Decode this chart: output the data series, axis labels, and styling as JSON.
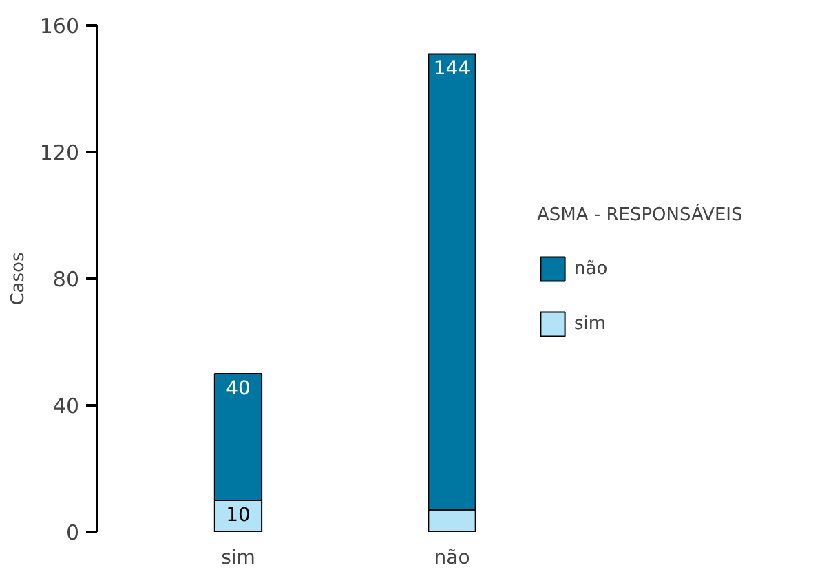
{
  "chart_data": {
    "type": "bar",
    "stacked": true,
    "ylabel": "Casos",
    "legend_title": "ASMA - RESPONSÁVEIS",
    "legend": "right",
    "grid": false,
    "categories": [
      "sim",
      "não"
    ],
    "ylim": [
      0,
      160
    ],
    "yticks": [
      0,
      40,
      80,
      120,
      160
    ],
    "series": [
      {
        "name": "sim",
        "color": "#b3e3f7",
        "values": [
          10,
          7
        ],
        "value_labels": [
          "10",
          null
        ]
      },
      {
        "name": "não",
        "color": "#0076a3",
        "values": [
          40,
          144
        ],
        "value_labels": [
          "40",
          "144"
        ]
      }
    ]
  }
}
